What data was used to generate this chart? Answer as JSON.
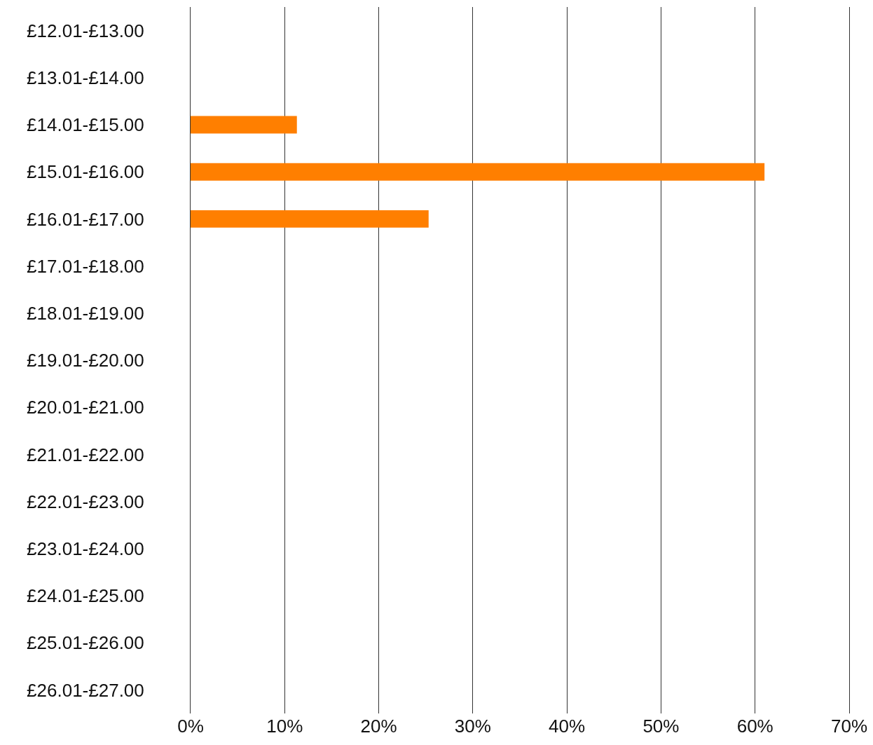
{
  "chart_data": {
    "type": "bar",
    "orientation": "horizontal",
    "categories": [
      "£12.01-£13.00",
      "£13.01-£14.00",
      "£14.01-£15.00",
      "£15.01-£16.00",
      "£16.01-£17.00",
      "£17.01-£18.00",
      "£18.01-£19.00",
      "£19.01-£20.00",
      "£20.01-£21.00",
      "£21.01-£22.00",
      "£22.01-£23.00",
      "£23.01-£24.00",
      "£24.01-£25.00",
      "£25.01-£26.00",
      "£26.01-£27.00"
    ],
    "values": [
      0,
      0,
      11.3,
      61,
      25.3,
      0,
      0,
      0,
      0,
      0,
      0,
      0,
      0,
      0,
      0
    ],
    "color": "#ff7f00",
    "xlim": [
      0,
      70
    ],
    "xticks": [
      {
        "value": 0,
        "label": "0%"
      },
      {
        "value": 10,
        "label": "10%"
      },
      {
        "value": 20,
        "label": "20%"
      },
      {
        "value": 30,
        "label": "30%"
      },
      {
        "value": 40,
        "label": "40%"
      },
      {
        "value": 50,
        "label": "50%"
      },
      {
        "value": 60,
        "label": "60%"
      },
      {
        "value": 70,
        "label": "70%"
      }
    ],
    "grid": "x"
  }
}
